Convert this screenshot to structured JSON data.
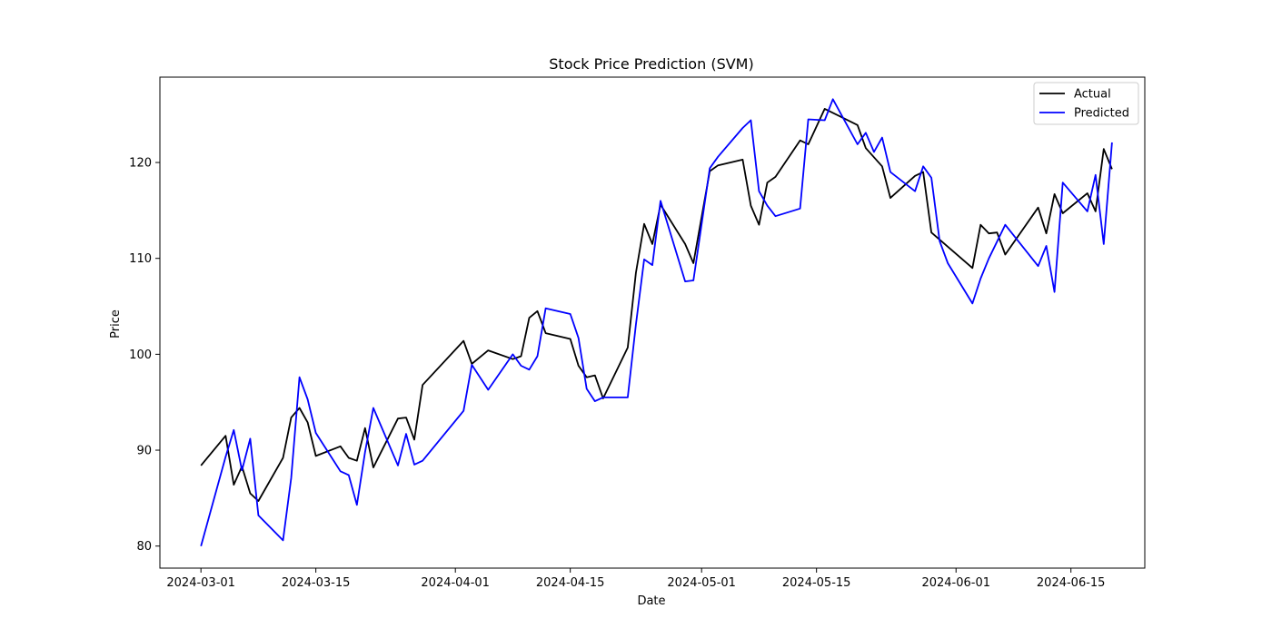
{
  "chart_data": {
    "type": "line",
    "title": "Stock Price Prediction (SVM)",
    "xlabel": "Date",
    "ylabel": "Price",
    "ylim": [
      77.7,
      128.9
    ],
    "xlim": [
      "2024-02-25",
      "2024-06-24"
    ],
    "x_ticks": [
      "2024-03-01",
      "2024-03-15",
      "2024-04-01",
      "2024-04-15",
      "2024-05-01",
      "2024-05-15",
      "2024-06-01",
      "2024-06-15"
    ],
    "y_ticks": [
      80,
      90,
      100,
      110,
      120
    ],
    "grid": false,
    "legend_position": "top-right",
    "series": [
      {
        "name": "Actual",
        "color": "#000000",
        "x": [
          "2024-03-01",
          "2024-03-04",
          "2024-03-05",
          "2024-03-06",
          "2024-03-07",
          "2024-03-08",
          "2024-03-11",
          "2024-03-12",
          "2024-03-13",
          "2024-03-14",
          "2024-03-15",
          "2024-03-18",
          "2024-03-19",
          "2024-03-20",
          "2024-03-21",
          "2024-03-22",
          "2024-03-25",
          "2024-03-26",
          "2024-03-27",
          "2024-03-28",
          "2024-04-02",
          "2024-04-03",
          "2024-04-05",
          "2024-04-08",
          "2024-04-09",
          "2024-04-10",
          "2024-04-11",
          "2024-04-12",
          "2024-04-15",
          "2024-04-16",
          "2024-04-17",
          "2024-04-18",
          "2024-04-19",
          "2024-04-22",
          "2024-04-23",
          "2024-04-24",
          "2024-04-25",
          "2024-04-26",
          "2024-04-29",
          "2024-04-30",
          "2024-05-02",
          "2024-05-03",
          "2024-05-06",
          "2024-05-07",
          "2024-05-08",
          "2024-05-09",
          "2024-05-10",
          "2024-05-13",
          "2024-05-14",
          "2024-05-16",
          "2024-05-20",
          "2024-05-21",
          "2024-05-23",
          "2024-05-24",
          "2024-05-27",
          "2024-05-28",
          "2024-05-29",
          "2024-06-03",
          "2024-06-04",
          "2024-06-05",
          "2024-06-06",
          "2024-06-07",
          "2024-06-11",
          "2024-06-12",
          "2024-06-13",
          "2024-06-14",
          "2024-06-17",
          "2024-06-18",
          "2024-06-19",
          "2024-06-20"
        ],
        "y": [
          88.4,
          91.5,
          86.4,
          88.3,
          85.5,
          84.7,
          89.2,
          93.4,
          94.4,
          92.9,
          89.4,
          90.4,
          89.2,
          88.9,
          92.3,
          88.2,
          93.3,
          93.4,
          91.1,
          96.8,
          101.4,
          99.0,
          100.4,
          99.5,
          99.8,
          103.8,
          104.5,
          102.2,
          101.6,
          98.8,
          97.6,
          97.8,
          95.4,
          100.7,
          108.5,
          113.6,
          111.5,
          115.6,
          111.5,
          109.5,
          119.1,
          119.7,
          120.3,
          115.5,
          113.5,
          117.9,
          118.5,
          122.3,
          121.9,
          125.6,
          123.9,
          121.5,
          119.6,
          116.3,
          118.6,
          119.0,
          112.7,
          109.0,
          113.5,
          112.6,
          112.7,
          110.4,
          115.3,
          112.6,
          116.7,
          114.7,
          116.8,
          114.9,
          121.4,
          119.3
        ]
      },
      {
        "name": "Predicted",
        "color": "#0000ff",
        "x": [
          "2024-03-01",
          "2024-03-04",
          "2024-03-05",
          "2024-03-06",
          "2024-03-07",
          "2024-03-08",
          "2024-03-11",
          "2024-03-12",
          "2024-03-13",
          "2024-03-14",
          "2024-03-15",
          "2024-03-18",
          "2024-03-19",
          "2024-03-20",
          "2024-03-21",
          "2024-03-22",
          "2024-03-25",
          "2024-03-26",
          "2024-03-27",
          "2024-03-28",
          "2024-04-02",
          "2024-04-03",
          "2024-04-05",
          "2024-04-08",
          "2024-04-09",
          "2024-04-10",
          "2024-04-11",
          "2024-04-12",
          "2024-04-15",
          "2024-04-16",
          "2024-04-17",
          "2024-04-18",
          "2024-04-19",
          "2024-04-22",
          "2024-04-23",
          "2024-04-24",
          "2024-04-25",
          "2024-04-26",
          "2024-04-29",
          "2024-04-30",
          "2024-05-02",
          "2024-05-03",
          "2024-05-06",
          "2024-05-07",
          "2024-05-08",
          "2024-05-09",
          "2024-05-10",
          "2024-05-13",
          "2024-05-14",
          "2024-05-16",
          "2024-05-17",
          "2024-05-20",
          "2024-05-21",
          "2024-05-22",
          "2024-05-23",
          "2024-05-24",
          "2024-05-27",
          "2024-05-28",
          "2024-05-29",
          "2024-05-30",
          "2024-05-31",
          "2024-06-03",
          "2024-06-04",
          "2024-06-05",
          "2024-06-07",
          "2024-06-11",
          "2024-06-12",
          "2024-06-13",
          "2024-06-14",
          "2024-06-17",
          "2024-06-18",
          "2024-06-19",
          "2024-06-20"
        ],
        "y": [
          80.0,
          89.3,
          92.1,
          87.9,
          91.2,
          83.2,
          80.6,
          87.1,
          97.6,
          95.3,
          91.8,
          87.8,
          87.4,
          84.3,
          89.8,
          94.4,
          88.4,
          91.7,
          88.5,
          88.9,
          94.1,
          98.9,
          96.3,
          100.0,
          98.8,
          98.4,
          99.8,
          104.8,
          104.2,
          101.7,
          96.4,
          95.1,
          95.5,
          95.5,
          103.1,
          109.9,
          109.3,
          116.0,
          107.6,
          107.7,
          119.4,
          120.6,
          123.6,
          124.4,
          117.0,
          115.5,
          114.4,
          115.2,
          124.5,
          124.4,
          126.6,
          121.9,
          123.1,
          121.1,
          122.6,
          119.0,
          117.0,
          119.6,
          118.4,
          111.8,
          109.5,
          105.3,
          107.9,
          110.0,
          113.5,
          109.2,
          111.3,
          106.5,
          117.9,
          114.9,
          118.7,
          111.5,
          122.1
        ]
      }
    ]
  }
}
